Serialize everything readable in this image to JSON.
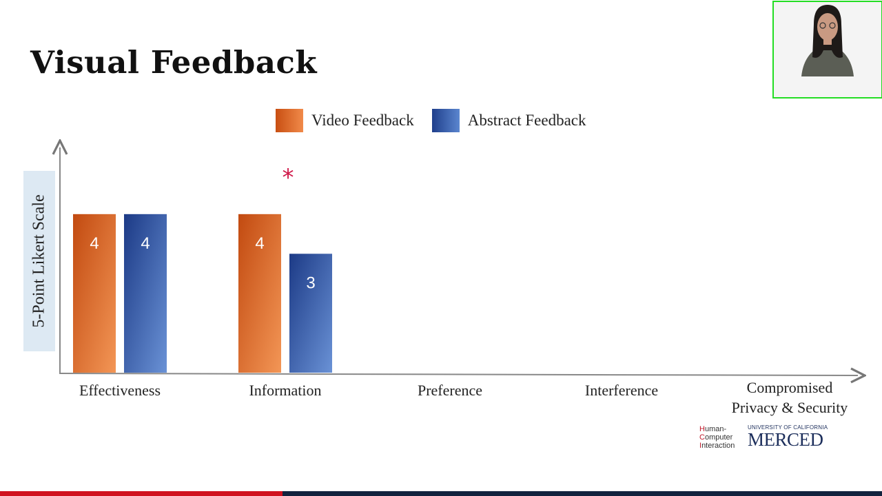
{
  "title": "Visual Feedback",
  "legend": [
    {
      "label": "Video Feedback",
      "color": "#e06a2a"
    },
    {
      "label": "Abstract Feedback",
      "color": "#2f56a6"
    }
  ],
  "chart_data": {
    "type": "bar",
    "categories": [
      "Effectiveness",
      "Information",
      "Preference",
      "Interference",
      "Compromised\nPrivacy & Security"
    ],
    "series": [
      {
        "name": "Video Feedback",
        "values": [
          4,
          4,
          null,
          null,
          null
        ]
      },
      {
        "name": "Abstract Feedback",
        "values": [
          4,
          3,
          null,
          null,
          null
        ]
      }
    ],
    "ylabel": "5-Point Likert Scale",
    "ylim": [
      0,
      5.7
    ],
    "significance": [
      {
        "category": "Information",
        "marker": "*"
      }
    ],
    "grid": false
  },
  "logos": {
    "hci": [
      {
        "initial": "H",
        "rest": "uman-"
      },
      {
        "initial": "C",
        "rest": "omputer"
      },
      {
        "initial": "I",
        "rest": "nteraction"
      }
    ],
    "uc_line": "UNIVERSITY OF CALIFORNIA",
    "merced": "MERCED"
  },
  "progress": 0.32,
  "webcam": {
    "icon": "presenter-avatar-icon"
  }
}
